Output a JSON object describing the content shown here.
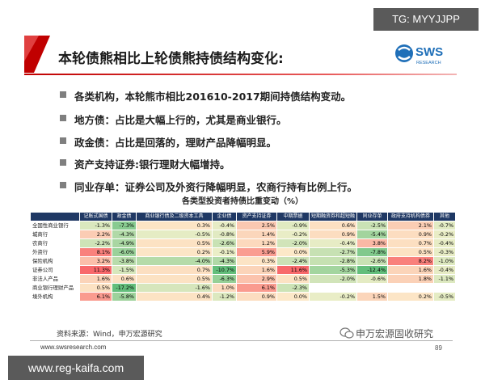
{
  "watermark_top": "TG: MYYJJPP",
  "title": "本轮债熊相比上轮债熊持债结构变化:",
  "logo": {
    "name": "SWS",
    "subtitle": "RESEARCH"
  },
  "bullets": [
    "各类机构，本轮熊市相比201610-2017期间持债结构变动。",
    "地方债：占比是大幅上行的，尤其是商业银行。",
    "政金债：占比是回落的，理财产品降幅明显。",
    "资产支持证券:银行理财大幅增持。",
    "同业存单：证券公司及外资行降幅明显，农商行持有比例上行。"
  ],
  "table": {
    "title": "各类型投资者持债比重变动（%）",
    "columns": [
      "记账式国债",
      "政金债",
      "商业银行债及二级资本工具",
      "企业债",
      "资产支持证券",
      "中期票据",
      "短期融资券和超短融",
      "同业存单",
      "政府支持机构债券",
      "其他"
    ],
    "rows": [
      {
        "label": "全国性商业银行",
        "cells": [
          "-1.3%",
          "-7.3%",
          "0.3%",
          "-0.4%",
          "2.5%",
          "-0.9%",
          "0.6%",
          "-2.5%",
          "2.1%",
          "-0.7%"
        ]
      },
      {
        "label": "城商行",
        "cells": [
          "2.2%",
          "-4.3%",
          "-0.5%",
          "-0.8%",
          "1.4%",
          "-0.2%",
          "0.9%",
          "-5.4%",
          "0.9%",
          "-0.2%"
        ]
      },
      {
        "label": "农商行",
        "cells": [
          "-2.2%",
          "-4.9%",
          "0.5%",
          "-2.6%",
          "1.2%",
          "-2.0%",
          "-0.4%",
          "3.8%",
          "0.7%",
          "-0.4%"
        ]
      },
      {
        "label": "外资行",
        "cells": [
          "8.1%",
          "-6.0%",
          "0.2%",
          "-0.1%",
          "5.9%",
          "0.0%",
          "-2.7%",
          "-7.8%",
          "0.5%",
          "-0.3%"
        ]
      },
      {
        "label": "保险机构",
        "cells": [
          "3.2%",
          "-3.8%",
          "-4.0%",
          "-4.3%",
          "0.3%",
          "-2.4%",
          "-2.8%",
          "-2.6%",
          "8.2%",
          "-1.0%"
        ]
      },
      {
        "label": "证券公司",
        "cells": [
          "11.3%",
          "-1.5%",
          "0.7%",
          "-10.7%",
          "1.6%",
          "11.6%",
          "-5.3%",
          "-12.4%",
          "1.6%",
          "-0.4%"
        ]
      },
      {
        "label": "非法人产品",
        "cells": [
          "1.6%",
          "0.6%",
          "0.5%",
          "-6.3%",
          "2.9%",
          "0.5%",
          "-2.0%",
          "-0.6%",
          "1.8%",
          "-1.1%"
        ]
      },
      {
        "label": "商业银行理财产品",
        "cells": [
          "0.5%",
          "-17.2%",
          "-1.6%",
          "1.0%",
          "6.1%",
          "-2.3%",
          null,
          null,
          null,
          null
        ]
      },
      {
        "label": "境外机构",
        "cells": [
          "6.1%",
          "-5.8%",
          "0.4%",
          "-1.2%",
          "0.9%",
          "0.0%",
          "-0.2%",
          "1.5%",
          "0.2%",
          "-0.5%"
        ]
      }
    ]
  },
  "source": "资料来源：Wind，申万宏源研究",
  "website": "www.swsresearch.com",
  "wechat": "申万宏源固收研究",
  "page_number": "89",
  "watermark_bottom": "www.reg-kaifa.com"
}
